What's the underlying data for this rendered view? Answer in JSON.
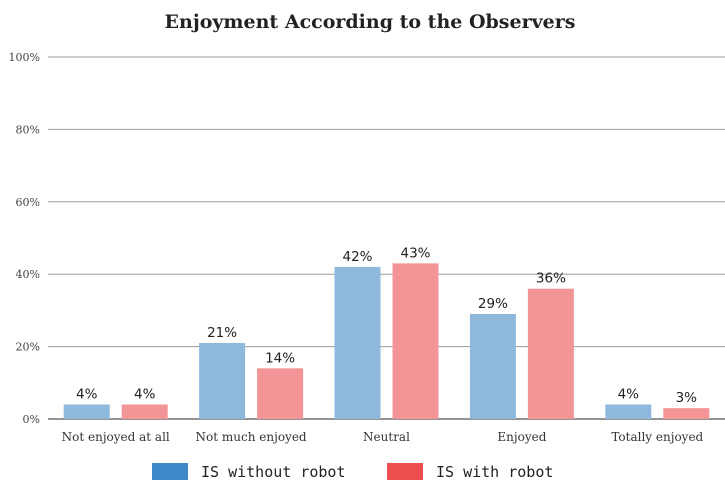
{
  "chart_data": {
    "type": "bar",
    "title": "Enjoyment According to the Observers",
    "xlabel": "",
    "ylabel": "",
    "ylim": [
      0,
      100
    ],
    "y_ticks": [
      "0%",
      "20%",
      "40%",
      "60%",
      "80%",
      "100%"
    ],
    "grid": true,
    "legend_position": "bottom",
    "categories": [
      "Not enjoyed at all",
      "Not much enjoyed",
      "Neutral",
      "Enjoyed",
      "Totally enjoyed"
    ],
    "series": [
      {
        "name": "IS without robot",
        "values": [
          4,
          21,
          42,
          29,
          4
        ],
        "labels": [
          "4%",
          "21%",
          "42%",
          "29%",
          "4%"
        ],
        "color": "#8fb8dd",
        "legend_color": "#3f89c9"
      },
      {
        "name": "IS with robot",
        "values": [
          4,
          14,
          43,
          36,
          3
        ],
        "labels": [
          "4%",
          "14%",
          "43%",
          "36%",
          "3%"
        ],
        "color": "#f39596",
        "legend_color": "#ec4e50"
      }
    ]
  }
}
